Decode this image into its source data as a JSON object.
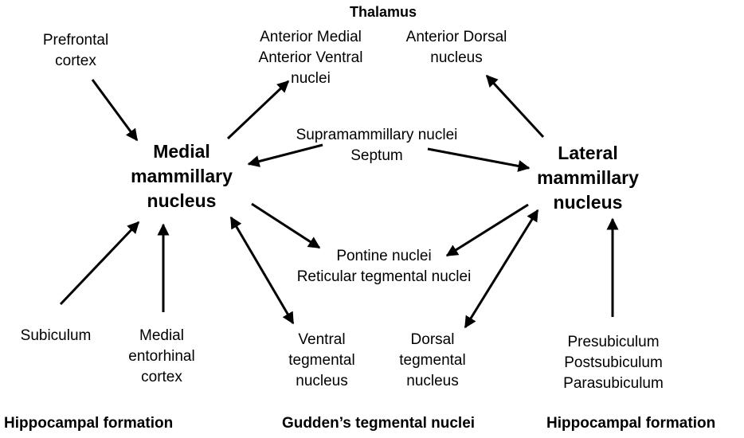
{
  "colors": {
    "background": "#ffffff",
    "ink": "#000000"
  },
  "nodes": {
    "thalamus": "Thalamus",
    "prefrontal": "Prefrontal\ncortex",
    "anterior_mv": "Anterior Medial\nAnterior Ventral\nnuclei",
    "anterior_d": "Anterior Dorsal\nnucleus",
    "medial_mammillary": "Medial\nmammillary\nnucleus",
    "lateral_mammillary": "Lateral\nmammillary\nnucleus",
    "supramammillary": "Supramammillary nuclei\nSeptum",
    "pontine": "Pontine nuclei\nReticular tegmental nuclei",
    "subiculum": "Subiculum",
    "medial_entorhinal": "Medial\nentorhinal\ncortex",
    "ventral_tegmental": "Ventral\ntegmental\nnucleus",
    "dorsal_tegmental": "Dorsal\ntegmental\nnucleus",
    "presubiculum": "Presubiculum\nPostsubiculum\nParasubiculum"
  },
  "sections": {
    "hippocampal_left": "Hippocampal formation",
    "gudden": "Gudden’s tegmental nuclei",
    "hippocampal_right": "Hippocampal formation"
  }
}
